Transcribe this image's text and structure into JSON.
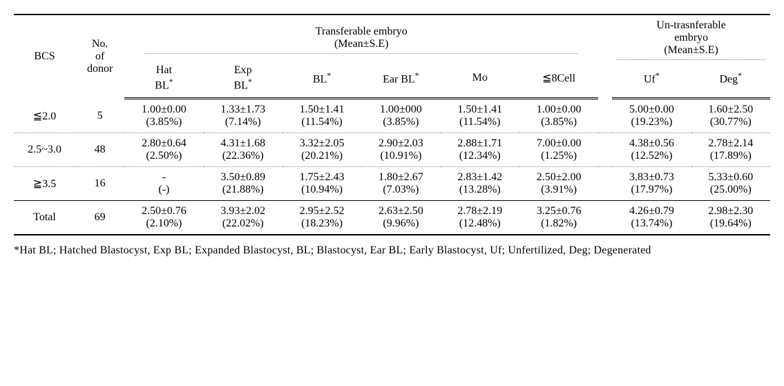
{
  "headers": {
    "bcs": "BCS",
    "donor": "No.\nof\ndonor",
    "group1_l1": "Transferable embryo",
    "group1_l2": "(Mean±S.E)",
    "group2_l1": "Un-trasnferable",
    "group2_l2": "embryo",
    "group2_l3": "(Mean±S.E)",
    "cols": {
      "hatbl": "Hat\nBL",
      "expbl": "Exp\nBL",
      "bl": "BL",
      "earbl": "Ear BL",
      "mo": "Mo",
      "cell8": "≦8Cell",
      "uf": "Uf",
      "deg": "Deg"
    },
    "star": "*"
  },
  "rows": [
    {
      "bcs": "≦2.0",
      "donor": "5",
      "hatbl": {
        "v": "1.00±0.00",
        "p": "(3.85%)"
      },
      "expbl": {
        "v": "1.33±1.73",
        "p": "(7.14%)"
      },
      "bl": {
        "v": "1.50±1.41",
        "p": "(11.54%)"
      },
      "earbl": {
        "v": "1.00±000",
        "p": "(3.85%)"
      },
      "mo": {
        "v": "1.50±1.41",
        "p": "(11.54%)"
      },
      "cell8": {
        "v": "1.00±0.00",
        "p": "(3.85%)"
      },
      "uf": {
        "v": "5.00±0.00",
        "p": "(19.23%)"
      },
      "deg": {
        "v": "1.60±2.50",
        "p": "(30.77%)"
      }
    },
    {
      "bcs": "2.5~3.0",
      "donor": "48",
      "hatbl": {
        "v": "2.80±0.64",
        "p": "(2.50%)"
      },
      "expbl": {
        "v": "4.31±1.68",
        "p": "(22.36%)"
      },
      "bl": {
        "v": "3.32±2.05",
        "p": "(20.21%)"
      },
      "earbl": {
        "v": "2.90±2.03",
        "p": "(10.91%)"
      },
      "mo": {
        "v": "2.88±1.71",
        "p": "(12.34%)"
      },
      "cell8": {
        "v": "7.00±0.00",
        "p": "(1.25%)"
      },
      "uf": {
        "v": "4.38±0.56",
        "p": "(12.52%)"
      },
      "deg": {
        "v": "2.78±2.14",
        "p": "(17.89%)"
      }
    },
    {
      "bcs": "≧3.5",
      "donor": "16",
      "hatbl": {
        "v": "-",
        "p": "(-)"
      },
      "expbl": {
        "v": "3.50±0.89",
        "p": "(21.88%)"
      },
      "bl": {
        "v": "1.75±2.43",
        "p": "(10.94%)"
      },
      "earbl": {
        "v": "1.80±2.67",
        "p": "(7.03%)"
      },
      "mo": {
        "v": "2.83±1.42",
        "p": "(13.28%)"
      },
      "cell8": {
        "v": "2.50±2.00",
        "p": "(3.91%)"
      },
      "uf": {
        "v": "3.83±0.73",
        "p": "(17.97%)"
      },
      "deg": {
        "v": "5.33±0.60",
        "p": "(25.00%)"
      }
    },
    {
      "bcs": "Total",
      "donor": "69",
      "hatbl": {
        "v": "2.50±0.76",
        "p": "(2.10%)"
      },
      "expbl": {
        "v": "3.93±2.02",
        "p": "(22.02%)"
      },
      "bl": {
        "v": "2.95±2.52",
        "p": "(18.23%)"
      },
      "earbl": {
        "v": "2.63±2.50",
        "p": "(9.96%)"
      },
      "mo": {
        "v": "2.78±2.19",
        "p": "(12.48%)"
      },
      "cell8": {
        "v": "3.25±0.76",
        "p": "(1.82%)"
      },
      "uf": {
        "v": "4.26±0.79",
        "p": "(13.74%)"
      },
      "deg": {
        "v": "2.98±2.30",
        "p": "(19.64%)"
      }
    }
  ],
  "footnote": "*Hat BL; Hatched Blastocyst, Exp BL; Expanded Blastocyst, BL; Blastocyst, Ear BL; Early Blastocyst, Uf; Unfertilized, Deg; Degenerated"
}
